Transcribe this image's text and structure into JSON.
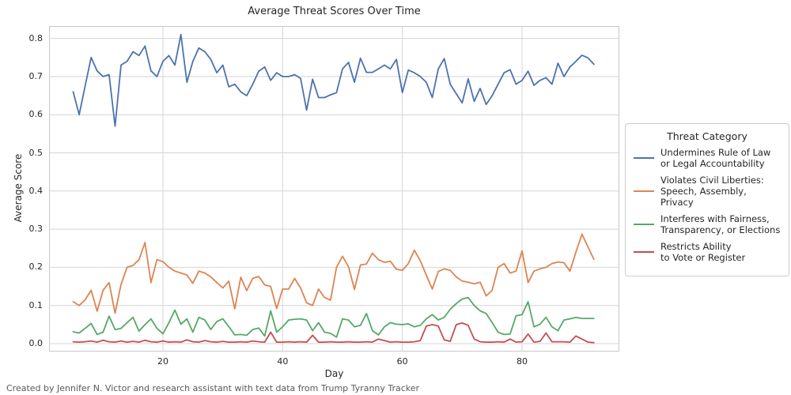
{
  "title": "Average Threat Scores Over Time",
  "footer_credit": "Created by Jennifer N. Victor and research assistant with text data from Trump Tyranny Tracker",
  "colors": {
    "background": "#ffffff",
    "grid": "#d4d4d4",
    "spine": "#c8c8c8",
    "text": "#262626",
    "footer_text": "#595959",
    "blue": "#4c72b0",
    "orange": "#dd8452",
    "green": "#55a868",
    "red": "#c44e52"
  },
  "chart_data": {
    "type": "line",
    "title": "Average Threat Scores Over Time",
    "xlabel": "Day",
    "ylabel": "Average Score",
    "legend_title": "Threat Category",
    "legend_position": "right",
    "grid": true,
    "x_ticks": [
      20,
      40,
      60,
      80
    ],
    "y_ticks": [
      0.0,
      0.1,
      0.2,
      0.3,
      0.4,
      0.5,
      0.6,
      0.7,
      0.8
    ],
    "xlim": [
      1,
      96.3
    ],
    "ylim": [
      -0.02,
      0.833
    ],
    "x": [
      5,
      6,
      7,
      8,
      9,
      10,
      11,
      12,
      13,
      14,
      15,
      16,
      17,
      18,
      19,
      20,
      21,
      22,
      23,
      24,
      25,
      26,
      27,
      28,
      29,
      30,
      31,
      32,
      33,
      34,
      35,
      36,
      37,
      38,
      39,
      40,
      41,
      42,
      43,
      44,
      45,
      46,
      47,
      48,
      49,
      50,
      51,
      52,
      53,
      54,
      55,
      56,
      57,
      58,
      59,
      60,
      61,
      62,
      63,
      64,
      65,
      66,
      67,
      68,
      69,
      70,
      71,
      72,
      73,
      74,
      75,
      76,
      77,
      78,
      79,
      80,
      81,
      82,
      83,
      84,
      85,
      86,
      87,
      88,
      89,
      90,
      91,
      92
    ],
    "series": [
      {
        "name": "Undermines Rule of Law or Legal Accountability",
        "label": "Undermines Rule of Law\nor Legal Accountability",
        "color": "#4c72b0",
        "values": [
          0.66,
          0.6,
          0.675,
          0.75,
          0.715,
          0.7,
          0.705,
          0.57,
          0.73,
          0.74,
          0.765,
          0.755,
          0.78,
          0.715,
          0.7,
          0.74,
          0.755,
          0.73,
          0.81,
          0.685,
          0.74,
          0.775,
          0.765,
          0.745,
          0.71,
          0.73,
          0.673,
          0.68,
          0.66,
          0.65,
          0.68,
          0.714,
          0.725,
          0.69,
          0.71,
          0.7,
          0.7,
          0.705,
          0.695,
          0.612,
          0.693,
          0.645,
          0.645,
          0.652,
          0.658,
          0.72,
          0.737,
          0.685,
          0.748,
          0.711,
          0.711,
          0.72,
          0.73,
          0.72,
          0.745,
          0.658,
          0.717,
          0.71,
          0.7,
          0.685,
          0.645,
          0.72,
          0.747,
          0.68,
          0.655,
          0.631,
          0.694,
          0.635,
          0.669,
          0.627,
          0.65,
          0.68,
          0.71,
          0.718,
          0.68,
          0.69,
          0.714,
          0.677,
          0.69,
          0.697,
          0.68,
          0.735,
          0.7,
          0.725,
          0.74,
          0.756,
          0.749,
          0.732
        ]
      },
      {
        "name": "Violates Civil Liberties: Speech, Assembly, Privacy",
        "label": "Violates Civil Liberties:\nSpeech, Assembly, Privacy",
        "color": "#dd8452",
        "values": [
          0.11,
          0.1,
          0.115,
          0.14,
          0.085,
          0.14,
          0.16,
          0.08,
          0.155,
          0.2,
          0.205,
          0.22,
          0.265,
          0.16,
          0.22,
          0.215,
          0.2,
          0.19,
          0.185,
          0.18,
          0.158,
          0.19,
          0.185,
          0.175,
          0.16,
          0.146,
          0.164,
          0.091,
          0.174,
          0.139,
          0.171,
          0.176,
          0.154,
          0.15,
          0.092,
          0.143,
          0.143,
          0.171,
          0.146,
          0.107,
          0.1,
          0.143,
          0.121,
          0.114,
          0.2,
          0.229,
          0.202,
          0.142,
          0.206,
          0.209,
          0.237,
          0.22,
          0.213,
          0.216,
          0.195,
          0.192,
          0.21,
          0.245,
          0.217,
          0.18,
          0.143,
          0.189,
          0.196,
          0.192,
          0.175,
          0.164,
          0.161,
          0.157,
          0.161,
          0.125,
          0.14,
          0.2,
          0.21,
          0.185,
          0.19,
          0.243,
          0.16,
          0.19,
          0.196,
          0.2,
          0.21,
          0.214,
          0.212,
          0.19,
          0.24,
          0.287,
          0.254,
          0.221
        ]
      },
      {
        "name": "Interferes with Fairness, Transparency, or Elections",
        "label": "Interferes with Fairness,\nTransparency, or Elections",
        "color": "#55a868",
        "values": [
          0.031,
          0.028,
          0.04,
          0.053,
          0.024,
          0.03,
          0.072,
          0.037,
          0.04,
          0.055,
          0.069,
          0.033,
          0.05,
          0.065,
          0.04,
          0.026,
          0.055,
          0.088,
          0.051,
          0.065,
          0.03,
          0.069,
          0.062,
          0.037,
          0.058,
          0.065,
          0.045,
          0.023,
          0.024,
          0.022,
          0.037,
          0.041,
          0.02,
          0.086,
          0.03,
          0.044,
          0.062,
          0.064,
          0.065,
          0.062,
          0.034,
          0.055,
          0.03,
          0.027,
          0.017,
          0.065,
          0.062,
          0.044,
          0.048,
          0.079,
          0.034,
          0.023,
          0.044,
          0.055,
          0.051,
          0.05,
          0.052,
          0.044,
          0.048,
          0.065,
          0.076,
          0.062,
          0.069,
          0.09,
          0.105,
          0.117,
          0.121,
          0.1,
          0.086,
          0.079,
          0.055,
          0.03,
          0.024,
          0.025,
          0.073,
          0.076,
          0.11,
          0.044,
          0.051,
          0.069,
          0.044,
          0.034,
          0.062,
          0.065,
          0.069,
          0.066,
          0.066,
          0.066
        ]
      },
      {
        "name": "Restricts Ability to Vote or Register",
        "label": "Restricts Ability\nto Vote or Register",
        "color": "#c44e52",
        "values": [
          0.005,
          0.004,
          0.005,
          0.007,
          0.004,
          0.009,
          0.005,
          0.004,
          0.007,
          0.004,
          0.006,
          0.004,
          0.009,
          0.005,
          0.004,
          0.007,
          0.004,
          0.005,
          0.004,
          0.01,
          0.005,
          0.004,
          0.008,
          0.005,
          0.004,
          0.006,
          0.004,
          0.004,
          0.005,
          0.004,
          0.007,
          0.005,
          0.004,
          0.03,
          0.004,
          0.004,
          0.005,
          0.004,
          0.005,
          0.004,
          0.022,
          0.004,
          0.004,
          0.005,
          0.004,
          0.004,
          0.005,
          0.004,
          0.004,
          0.005,
          0.004,
          0.012,
          0.008,
          0.004,
          0.005,
          0.004,
          0.004,
          0.005,
          0.008,
          0.046,
          0.05,
          0.046,
          0.01,
          0.006,
          0.05,
          0.054,
          0.048,
          0.012,
          0.005,
          0.004,
          0.004,
          0.005,
          0.004,
          0.012,
          0.004,
          0.005,
          0.025,
          0.004,
          0.006,
          0.028,
          0.005,
          0.005,
          0.005,
          0.004,
          0.02,
          0.012,
          0.004,
          0.003
        ]
      }
    ]
  }
}
